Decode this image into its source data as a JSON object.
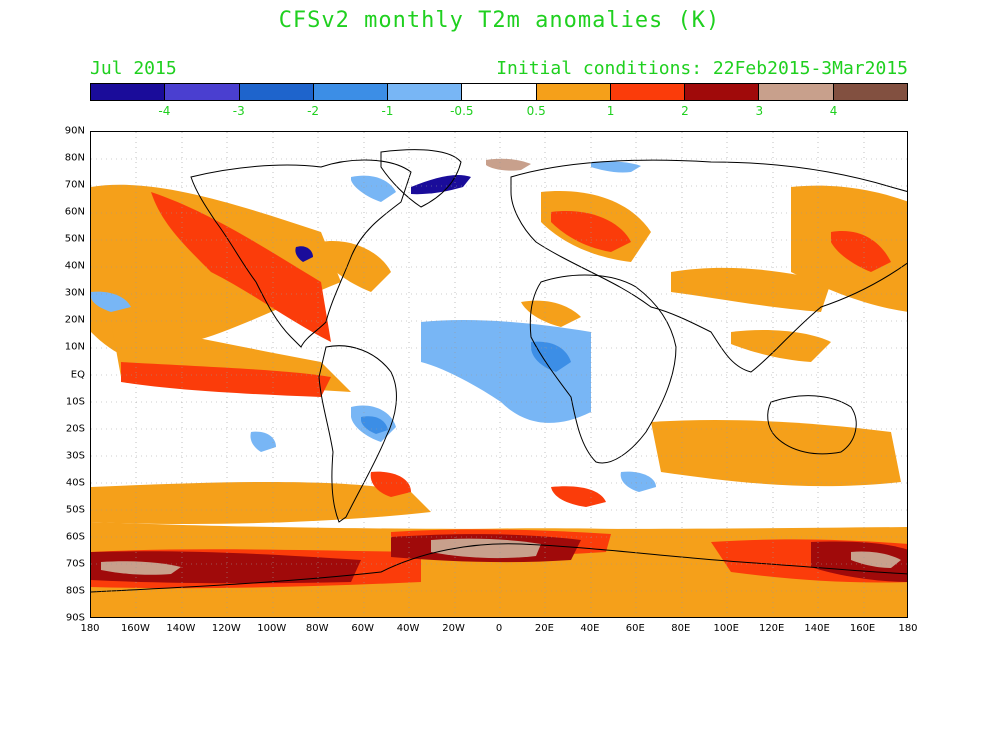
{
  "title": "CFSv2 monthly T2m anomalies (K)",
  "month_label": "Jul 2015",
  "initial_conditions": "Initial conditions: 22Feb2015-3Mar2015",
  "colorbar": {
    "colors": [
      "#1a0c9a",
      "#4a3fd0",
      "#1e64cc",
      "#3c8ee6",
      "#78b6f5",
      "#ffffff",
      "#f5a01a",
      "#fb3c0a",
      "#a00a0a",
      "#c8a08c",
      "#825040"
    ],
    "tick_labels": [
      "-4",
      "-3",
      "-2",
      "-1",
      "-0.5",
      "0.5",
      "1",
      "2",
      "3",
      "4"
    ]
  },
  "lat_labels": [
    "90N",
    "80N",
    "70N",
    "60N",
    "50N",
    "40N",
    "30N",
    "20N",
    "10N",
    "EQ",
    "10S",
    "20S",
    "30S",
    "40S",
    "50S",
    "60S",
    "70S",
    "80S",
    "90S"
  ],
  "lon_labels": [
    "180",
    "160W",
    "140W",
    "120W",
    "100W",
    "80W",
    "60W",
    "40W",
    "20W",
    "0",
    "20E",
    "40E",
    "60E",
    "80E",
    "100E",
    "120E",
    "140E",
    "160E",
    "180"
  ]
}
